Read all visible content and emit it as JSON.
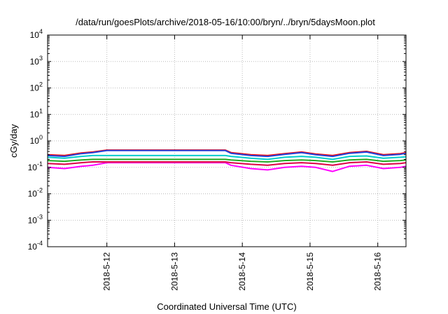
{
  "chart_data": {
    "type": "line",
    "title": "/data/run/goesPlots/archive/2018-05-16/10:00/bryn/../bryn/5daysMoon.plot",
    "xlabel": "Coordinated Universal Time (UTC)",
    "ylabel": "cGy/day",
    "y_scale": "log",
    "ylim": [
      0.0001,
      10000
    ],
    "xlim": [
      "2018-05-11 03:00",
      "2018-05-16 10:00"
    ],
    "y_ticks": [
      {
        "base": "10",
        "exp": "-4"
      },
      {
        "base": "10",
        "exp": "-3"
      },
      {
        "base": "10",
        "exp": "-2"
      },
      {
        "base": "10",
        "exp": "-1"
      },
      {
        "base": "10",
        "exp": "0"
      },
      {
        "base": "10",
        "exp": "1"
      },
      {
        "base": "10",
        "exp": "2"
      },
      {
        "base": "10",
        "exp": "3"
      },
      {
        "base": "10",
        "exp": "4"
      }
    ],
    "x_ticks": [
      "2018-5-12",
      "2018-5-13",
      "2018-5-14",
      "2018-5-15",
      "2018-5-16"
    ],
    "grid": true,
    "legend": "none",
    "x_dates": [
      "2018-05-11 03:00",
      "2018-05-11 09:00",
      "2018-05-11 15:00",
      "2018-05-11 19:00",
      "2018-05-12 00:00",
      "2018-05-12 12:00",
      "2018-05-13 00:00",
      "2018-05-13 12:00",
      "2018-05-13 18:00",
      "2018-05-13 20:00",
      "2018-05-14 03:00",
      "2018-05-14 09:00",
      "2018-05-14 15:00",
      "2018-05-14 21:00",
      "2018-05-15 02:00",
      "2018-05-15 08:00",
      "2018-05-15 14:00",
      "2018-05-15 20:00",
      "2018-05-16 02:00",
      "2018-05-16 08:00",
      "2018-05-16 10:00"
    ],
    "series": [
      {
        "color": "#ff00ff",
        "values": [
          0.1,
          0.09,
          0.11,
          0.12,
          0.15,
          0.15,
          0.15,
          0.15,
          0.15,
          0.12,
          0.09,
          0.08,
          0.1,
          0.11,
          0.1,
          0.07,
          0.11,
          0.12,
          0.09,
          0.1,
          0.11
        ]
      },
      {
        "color": "#dd0044",
        "values": [
          0.14,
          0.13,
          0.15,
          0.16,
          0.16,
          0.16,
          0.16,
          0.16,
          0.16,
          0.15,
          0.13,
          0.12,
          0.14,
          0.15,
          0.14,
          0.12,
          0.15,
          0.16,
          0.13,
          0.14,
          0.15
        ]
      },
      {
        "color": "#22aa22",
        "values": [
          0.18,
          0.17,
          0.19,
          0.2,
          0.2,
          0.2,
          0.2,
          0.2,
          0.2,
          0.19,
          0.17,
          0.16,
          0.18,
          0.19,
          0.18,
          0.16,
          0.19,
          0.2,
          0.17,
          0.18,
          0.19
        ]
      },
      {
        "color": "#00cccc",
        "values": [
          0.24,
          0.22,
          0.26,
          0.28,
          0.28,
          0.28,
          0.28,
          0.28,
          0.28,
          0.26,
          0.22,
          0.2,
          0.24,
          0.26,
          0.24,
          0.2,
          0.26,
          0.27,
          0.22,
          0.24,
          0.25
        ]
      },
      {
        "color": "#ff0000",
        "values": [
          0.3,
          0.28,
          0.35,
          0.38,
          0.45,
          0.45,
          0.45,
          0.45,
          0.45,
          0.36,
          0.3,
          0.28,
          0.33,
          0.38,
          0.32,
          0.28,
          0.36,
          0.4,
          0.3,
          0.33,
          0.36
        ]
      },
      {
        "color": "#2244dd",
        "values": [
          0.28,
          0.26,
          0.33,
          0.36,
          0.43,
          0.43,
          0.43,
          0.43,
          0.43,
          0.34,
          0.28,
          0.26,
          0.31,
          0.36,
          0.3,
          0.26,
          0.34,
          0.38,
          0.28,
          0.31,
          0.34
        ]
      }
    ]
  }
}
